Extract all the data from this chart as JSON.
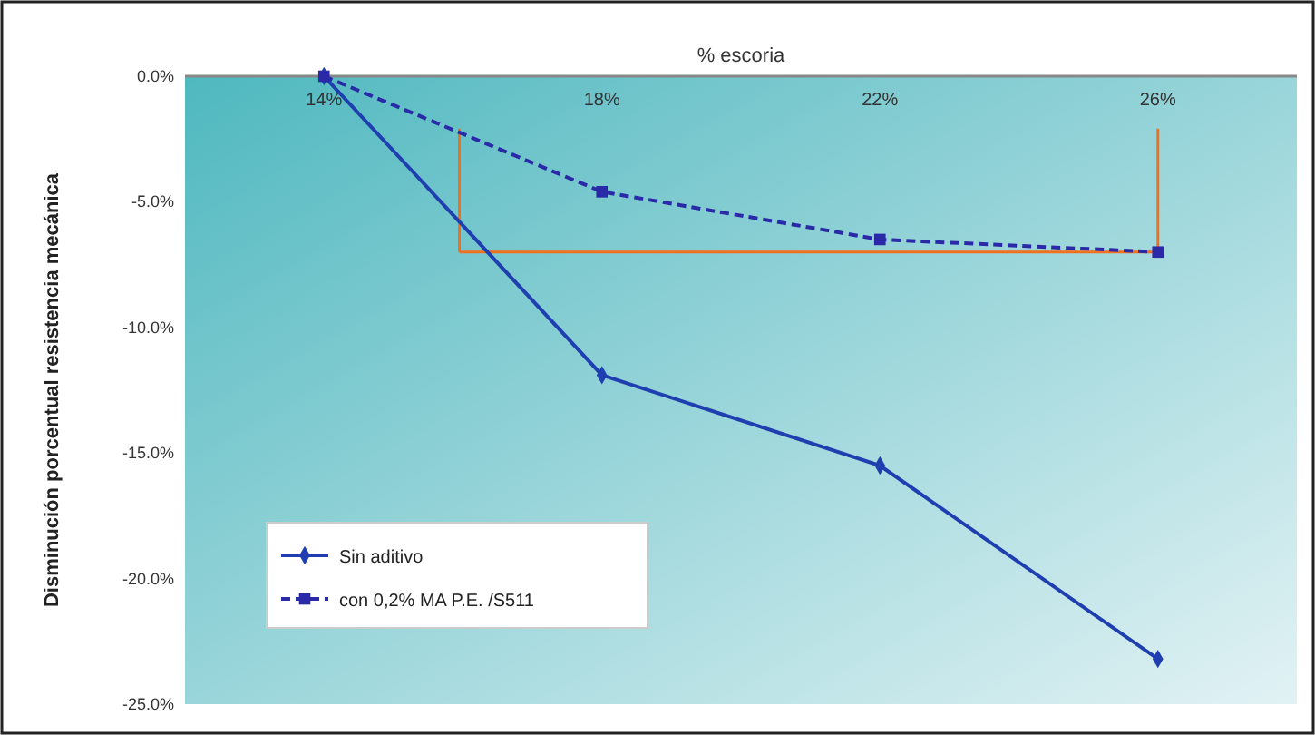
{
  "chart_data": {
    "type": "line",
    "xlabel": "% escoria",
    "ylabel": "Disminución porcentual resistencia mecánica",
    "categories": [
      "14%",
      "18%",
      "22%",
      "26%"
    ],
    "series": [
      {
        "name": "Sin aditivo",
        "color": "#1f3fb0",
        "values": [
          0,
          -11.9,
          -15.5,
          -23.2
        ],
        "marker": "diamond",
        "line_style": "solid"
      },
      {
        "name": "con 0,2% MA P.E. /S511",
        "color": "#2a2aa8",
        "values": [
          0,
          -4.6,
          -6.5,
          -7.0
        ],
        "marker": "square",
        "line_style": "dashed"
      }
    ],
    "ylim": [
      -25,
      0
    ],
    "yticks": [
      {
        "value": 0,
        "label": "0.0%"
      },
      {
        "value": -5,
        "label": "-5.0%"
      },
      {
        "value": -10,
        "label": "-10.0%"
      },
      {
        "value": -15,
        "label": "-15.0%"
      },
      {
        "value": -20,
        "label": "-20.0%"
      },
      {
        "value": -25,
        "label": "-25.0%"
      }
    ],
    "ref_lines": [
      {
        "axis": "y",
        "value": -7.0,
        "color": "#f07020"
      }
    ],
    "grid": false,
    "legend": "bottom left"
  }
}
